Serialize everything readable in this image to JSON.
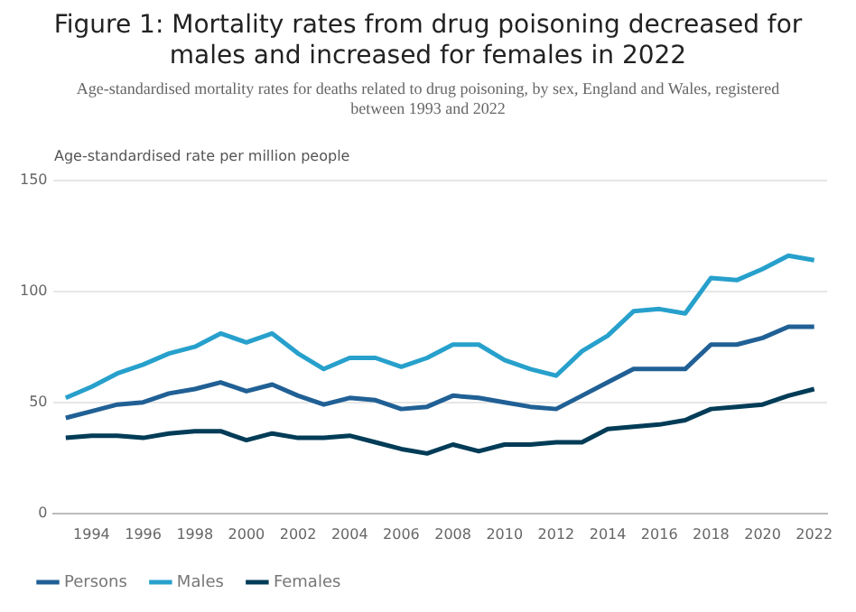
{
  "chart_data": {
    "type": "line",
    "title": "Figure 1: Mortality rates from drug poisoning decreased for males and increased for females in 2022",
    "subtitle": "Age-standardised mortality rates for deaths related to drug poisoning, by sex, England and Wales, registered between 1993 and 2022",
    "ylabel": "Age-standardised rate per million people",
    "x": [
      1993,
      1994,
      1995,
      1996,
      1997,
      1998,
      1999,
      2000,
      2001,
      2002,
      2003,
      2004,
      2005,
      2006,
      2007,
      2008,
      2009,
      2010,
      2011,
      2012,
      2013,
      2014,
      2015,
      2016,
      2017,
      2018,
      2019,
      2020,
      2021,
      2022
    ],
    "series": [
      {
        "name": "Persons",
        "color": "#206095",
        "values": [
          43,
          46,
          49,
          50,
          54,
          56,
          59,
          55,
          58,
          53,
          49,
          52,
          51,
          47,
          48,
          53,
          52,
          50,
          48,
          47,
          53,
          59,
          65,
          65,
          65,
          76,
          76,
          79,
          84,
          84
        ]
      },
      {
        "name": "Males",
        "color": "#27a0cc",
        "values": [
          52,
          57,
          63,
          67,
          72,
          75,
          81,
          77,
          81,
          72,
          65,
          70,
          70,
          66,
          70,
          76,
          76,
          69,
          65,
          62,
          73,
          80,
          91,
          92,
          90,
          106,
          105,
          110,
          116,
          114
        ]
      },
      {
        "name": "Females",
        "color": "#003c57",
        "values": [
          34,
          35,
          35,
          34,
          36,
          37,
          37,
          33,
          36,
          34,
          34,
          35,
          32,
          29,
          27,
          31,
          28,
          31,
          31,
          32,
          32,
          38,
          39,
          40,
          42,
          47,
          48,
          49,
          53,
          56
        ]
      }
    ],
    "xlim": [
      1992.5,
      2022.5
    ],
    "xticks": [
      1994,
      1996,
      1998,
      2000,
      2002,
      2004,
      2006,
      2008,
      2010,
      2012,
      2014,
      2016,
      2018,
      2020,
      2022
    ],
    "ylim": [
      0,
      150
    ],
    "yticks": [
      0,
      50,
      100,
      150
    ],
    "grid": "y",
    "legend": "bottom left",
    "marker": "none",
    "line_style": "solid"
  }
}
